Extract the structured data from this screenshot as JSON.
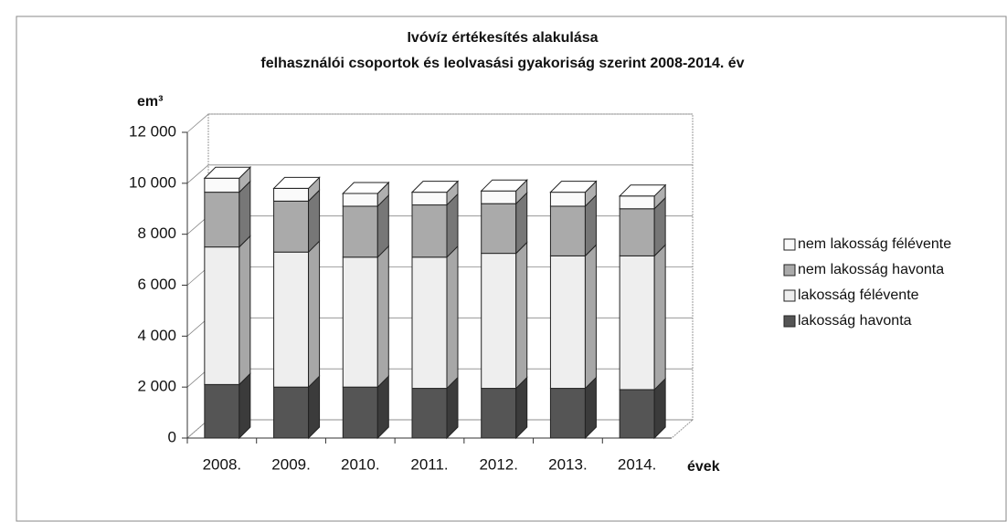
{
  "chart_data": {
    "type": "bar3d_stacked",
    "title": "Ivóvíz értékesítés alakulása",
    "subtitle": "felhasználói csoportok és leolvasási gyakoriság szerint 2008-2014. év",
    "y_label": "em³",
    "x_label": "évek",
    "categories": [
      "2008.",
      "2009.",
      "2010.",
      "2011.",
      "2012.",
      "2013.",
      "2014."
    ],
    "series": [
      {
        "name": "lakosság havonta",
        "color": "#555555",
        "values": [
          2100,
          2000,
          2000,
          1950,
          1950,
          1950,
          1900
        ]
      },
      {
        "name": "lakosság félévente",
        "color": "#eeeeee",
        "values": [
          5400,
          5300,
          5100,
          5150,
          5300,
          5200,
          5250
        ]
      },
      {
        "name": "nem lakosság havonta",
        "color": "#aaaaaa",
        "values": [
          2150,
          2000,
          2000,
          2050,
          1950,
          1950,
          1850
        ]
      },
      {
        "name": "nem lakosság félévente",
        "color": "#fafafa",
        "values": [
          550,
          500,
          500,
          500,
          500,
          550,
          500
        ]
      }
    ],
    "ylim": [
      0,
      12000
    ],
    "yticks": [
      0,
      {
        "value": 2000,
        "label": "2 000"
      },
      {
        "value": 4000,
        "label": "4 000"
      },
      {
        "value": 6000,
        "label": "6 000"
      },
      {
        "value": 8000,
        "label": "8 000"
      },
      {
        "value": 10000,
        "label": "10 000"
      },
      {
        "value": 12000,
        "label": "12 000"
      }
    ],
    "grid": true,
    "legend": "right"
  }
}
